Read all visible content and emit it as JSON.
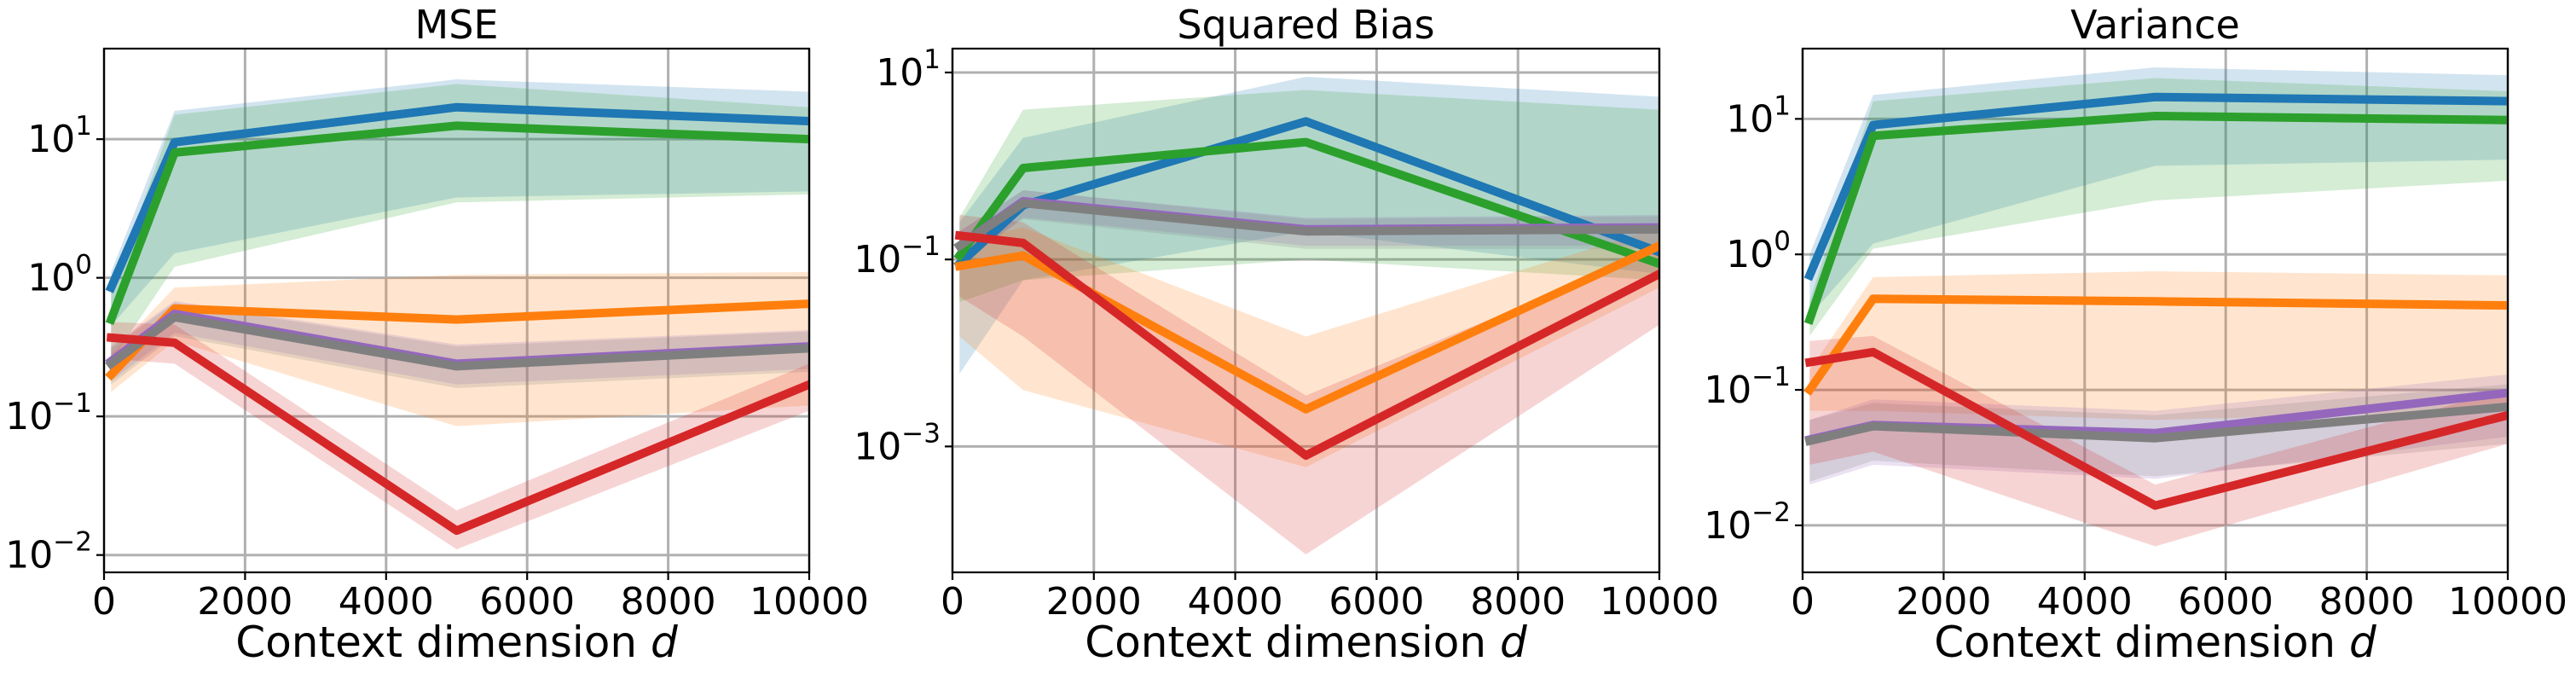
{
  "figure": {
    "xlabel_text": "Context dimension ",
    "xlabel_var": "d"
  },
  "colors": {
    "blue": "#1f77b4",
    "green": "#2ca02c",
    "orange": "#ff7f0e",
    "purple": "#9467bd",
    "gray": "#7f7f7f",
    "red": "#d62728",
    "grid": "#b0b0b0"
  },
  "chart_data": [
    {
      "type": "line",
      "title": "MSE",
      "xlabel": "Context dimension d",
      "ylabel": "",
      "yscale": "log",
      "xlim": [
        0,
        10000
      ],
      "ylim": [
        0.0075,
        45
      ],
      "xticks": [
        0,
        2000,
        4000,
        6000,
        8000,
        10000
      ],
      "xtick_labels": [
        "0",
        "2000",
        "4000",
        "6000",
        "8000",
        "10000"
      ],
      "ytick_exponents": [
        1,
        0,
        -1,
        -2
      ],
      "grid": true,
      "x": [
        100,
        1000,
        5000,
        10000
      ],
      "series": [
        {
          "name": "blue",
          "color": "#1f77b4",
          "values": [
            0.85,
            9.5,
            17,
            13.5
          ],
          "lower": [
            0.45,
            1.5,
            3.8,
            4.2
          ],
          "upper": [
            1.1,
            16,
            27,
            22
          ]
        },
        {
          "name": "green",
          "color": "#2ca02c",
          "values": [
            0.5,
            8.0,
            12.5,
            10.0
          ],
          "lower": [
            0.25,
            1.2,
            3.5,
            4.0
          ],
          "upper": [
            0.8,
            15,
            25,
            17
          ]
        },
        {
          "name": "orange",
          "color": "#ff7f0e",
          "values": [
            0.2,
            0.6,
            0.5,
            0.65
          ],
          "lower": [
            0.15,
            0.35,
            0.085,
            0.12
          ],
          "upper": [
            0.28,
            0.85,
            1.05,
            1.1
          ]
        },
        {
          "name": "purple",
          "color": "#9467bd",
          "values": [
            0.25,
            0.55,
            0.24,
            0.32
          ],
          "lower": [
            0.18,
            0.4,
            0.17,
            0.22
          ],
          "upper": [
            0.32,
            0.68,
            0.33,
            0.42
          ]
        },
        {
          "name": "gray",
          "color": "#7f7f7f",
          "values": [
            0.24,
            0.52,
            0.23,
            0.31
          ],
          "lower": [
            0.17,
            0.38,
            0.16,
            0.21
          ],
          "upper": [
            0.31,
            0.66,
            0.32,
            0.41
          ]
        },
        {
          "name": "red",
          "color": "#d62728",
          "values": [
            0.37,
            0.34,
            0.015,
            0.17
          ],
          "lower": [
            0.26,
            0.24,
            0.011,
            0.11
          ],
          "upper": [
            0.48,
            0.46,
            0.021,
            0.24
          ]
        }
      ]
    },
    {
      "type": "line",
      "title": "Squared Bias",
      "xlabel": "Context dimension d",
      "ylabel": "",
      "yscale": "log",
      "xlim": [
        0,
        10000
      ],
      "ylim": [
        4.5e-05,
        18
      ],
      "xticks": [
        0,
        2000,
        4000,
        6000,
        8000,
        10000
      ],
      "xtick_labels": [
        "0",
        "2000",
        "4000",
        "6000",
        "8000",
        "10000"
      ],
      "ytick_exponents": [
        1,
        -1,
        -3
      ],
      "grid": true,
      "x": [
        100,
        1000,
        5000,
        10000
      ],
      "series": [
        {
          "name": "blue",
          "color": "#1f77b4",
          "values": [
            0.09,
            0.38,
            3.0,
            0.12
          ],
          "lower": [
            0.006,
            0.06,
            0.2,
            0.07
          ],
          "upper": [
            0.25,
            2.0,
            9.0,
            5.5
          ]
        },
        {
          "name": "green",
          "color": "#2ca02c",
          "values": [
            0.11,
            0.95,
            1.8,
            0.09
          ],
          "lower": [
            0.035,
            0.06,
            0.1,
            0.06
          ],
          "upper": [
            0.28,
            4.0,
            6.5,
            4.0
          ]
        },
        {
          "name": "orange",
          "color": "#ff7f0e",
          "values": [
            0.085,
            0.11,
            0.0025,
            0.14
          ],
          "lower": [
            0.015,
            0.004,
            0.0006,
            0.05
          ],
          "upper": [
            0.15,
            0.22,
            0.015,
            0.22
          ]
        },
        {
          "name": "purple",
          "color": "#9467bd",
          "values": [
            0.14,
            0.42,
            0.21,
            0.22
          ],
          "lower": [
            0.09,
            0.28,
            0.14,
            0.14
          ],
          "upper": [
            0.2,
            0.55,
            0.28,
            0.3
          ]
        },
        {
          "name": "gray",
          "color": "#7f7f7f",
          "values": [
            0.14,
            0.4,
            0.2,
            0.21
          ],
          "lower": [
            0.09,
            0.27,
            0.13,
            0.13
          ],
          "upper": [
            0.2,
            0.55,
            0.27,
            0.29
          ]
        },
        {
          "name": "red",
          "color": "#d62728",
          "values": [
            0.18,
            0.15,
            0.0008,
            0.07
          ],
          "lower": [
            0.04,
            0.015,
            7e-05,
            0.02
          ],
          "upper": [
            0.3,
            0.25,
            0.0035,
            0.13
          ]
        }
      ]
    },
    {
      "type": "line",
      "title": "Variance",
      "xlabel": "Context dimension d",
      "ylabel": "",
      "yscale": "log",
      "xlim": [
        0,
        10000
      ],
      "ylim": [
        0.0045,
        33
      ],
      "xticks": [
        0,
        2000,
        4000,
        6000,
        8000,
        10000
      ],
      "xtick_labels": [
        "0",
        "2000",
        "4000",
        "6000",
        "8000",
        "10000"
      ],
      "ytick_exponents": [
        1,
        0,
        -1,
        -2
      ],
      "grid": true,
      "x": [
        100,
        1000,
        5000,
        10000
      ],
      "series": [
        {
          "name": "blue",
          "color": "#1f77b4",
          "values": [
            0.7,
            9.0,
            14.5,
            13.5
          ],
          "lower": [
            0.35,
            1.2,
            4.5,
            5.0
          ],
          "upper": [
            1.0,
            15,
            24,
            21
          ]
        },
        {
          "name": "green",
          "color": "#2ca02c",
          "values": [
            0.33,
            7.5,
            10.5,
            9.8
          ],
          "lower": [
            0.25,
            1.1,
            2.5,
            3.5
          ],
          "upper": [
            0.45,
            13.5,
            20,
            16
          ]
        },
        {
          "name": "orange",
          "color": "#ff7f0e",
          "values": [
            0.1,
            0.47,
            0.45,
            0.42
          ],
          "lower": [
            0.07,
            0.07,
            0.06,
            0.07
          ],
          "upper": [
            0.14,
            0.68,
            0.75,
            0.7
          ]
        },
        {
          "name": "purple",
          "color": "#9467bd",
          "values": [
            0.043,
            0.055,
            0.048,
            0.095
          ],
          "lower": [
            0.02,
            0.028,
            0.022,
            0.045
          ],
          "upper": [
            0.06,
            0.085,
            0.07,
            0.13
          ]
        },
        {
          "name": "gray",
          "color": "#7f7f7f",
          "values": [
            0.042,
            0.054,
            0.044,
            0.075
          ],
          "lower": [
            0.021,
            0.03,
            0.023,
            0.04
          ],
          "upper": [
            0.06,
            0.08,
            0.065,
            0.11
          ]
        },
        {
          "name": "red",
          "color": "#d62728",
          "values": [
            0.16,
            0.19,
            0.014,
            0.065
          ],
          "lower": [
            0.028,
            0.035,
            0.007,
            0.04
          ],
          "upper": [
            0.23,
            0.25,
            0.02,
            0.1
          ]
        }
      ]
    }
  ]
}
